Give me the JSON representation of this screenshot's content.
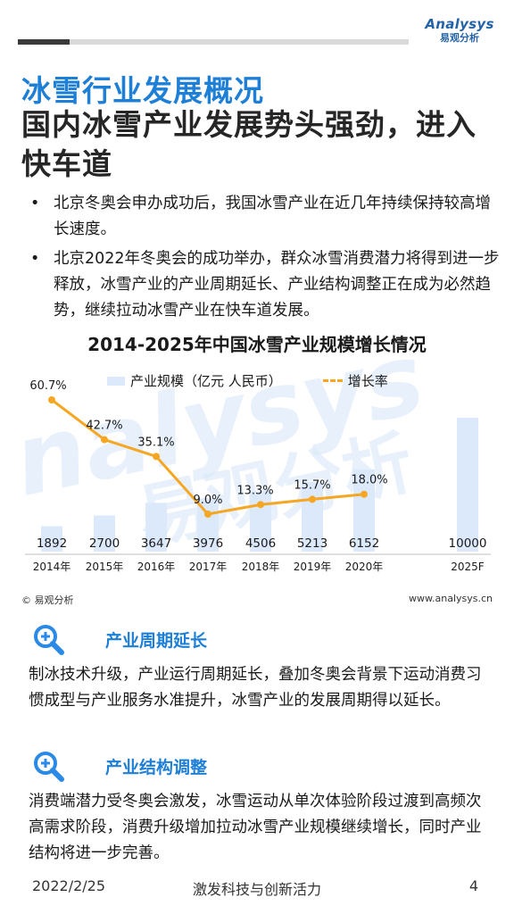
{
  "brand": {
    "logo_text": "Analysys",
    "logo_sub": "易观分析"
  },
  "header": {
    "title_line1": "冰雪行业发展概况",
    "title_line2": "国内冰雪产业发展势头强劲，进入快车道"
  },
  "bullets": [
    "北京冬奥会申办成功后，我国冰雪产业在近几年持续保持较高增长速度。",
    "北京2022年冬奥会的成功举办，群众冰雪消费潜力将得到进一步释放，冰雪产业的产业周期延长、产业结构调整正在成为必然趋势，继续拉动冰雪产业在快车道发展。"
  ],
  "bullet_marker": "•",
  "chart_data": {
    "type": "bar",
    "title": "2014-2025年中国冰雪产业规模增长情况",
    "categories": [
      "2014年",
      "2015年",
      "2016年",
      "2017年",
      "2018年",
      "2019年",
      "2020年",
      "2025F"
    ],
    "series": [
      {
        "name": "产业规模（亿元 人民币）",
        "type": "bar",
        "values": [
          1892,
          2700,
          3647,
          3976,
          4506,
          5213,
          6152,
          10000
        ],
        "value_labels": [
          "1892",
          "2700",
          "3647",
          "3976",
          "4506",
          "5213",
          "6152",
          "10000"
        ],
        "color": "#dbe9fb"
      },
      {
        "name": "增长率",
        "type": "line",
        "values": [
          60.7,
          42.7,
          35.1,
          9.0,
          13.3,
          15.7,
          18.0,
          null
        ],
        "value_labels": [
          "60.7%",
          "42.7%",
          "35.1%",
          "9.0%",
          "13.3%",
          "15.7%",
          "18.0%",
          ""
        ],
        "color": "#f5a623"
      }
    ],
    "legend_position": "top",
    "grid": false
  },
  "watermark_text": "易观分析",
  "source_text": "© 易观分析",
  "source_url": "www.analysys.cn",
  "sections": [
    {
      "title": "产业周期延长",
      "body": "制冰技术升级，产业运行周期延长，叠加冬奥会背景下运动消费习惯成型与产业服务水准提升，冰雪产业的发展周期得以延长。",
      "icon": "magnifier-plus-icon"
    },
    {
      "title": "产业结构调整",
      "body": "消费端潜力受冬奥会激发，冰雪运动从单次体验阶段过渡到高频次高需求阶段，消费升级增加拉动冰雪产业规模继续增长，同时产业结构将进一步完善。",
      "icon": "magnifier-plus-icon"
    }
  ],
  "footer": {
    "date": "2022/2/25",
    "slogan": "激发科技与创新活力",
    "page": "4"
  },
  "colors": {
    "accent_blue": "#1e7fd6",
    "bar_blue": "#dbe9fb",
    "line_orange": "#f5a623",
    "icon_blue": "#2b8ae6"
  }
}
